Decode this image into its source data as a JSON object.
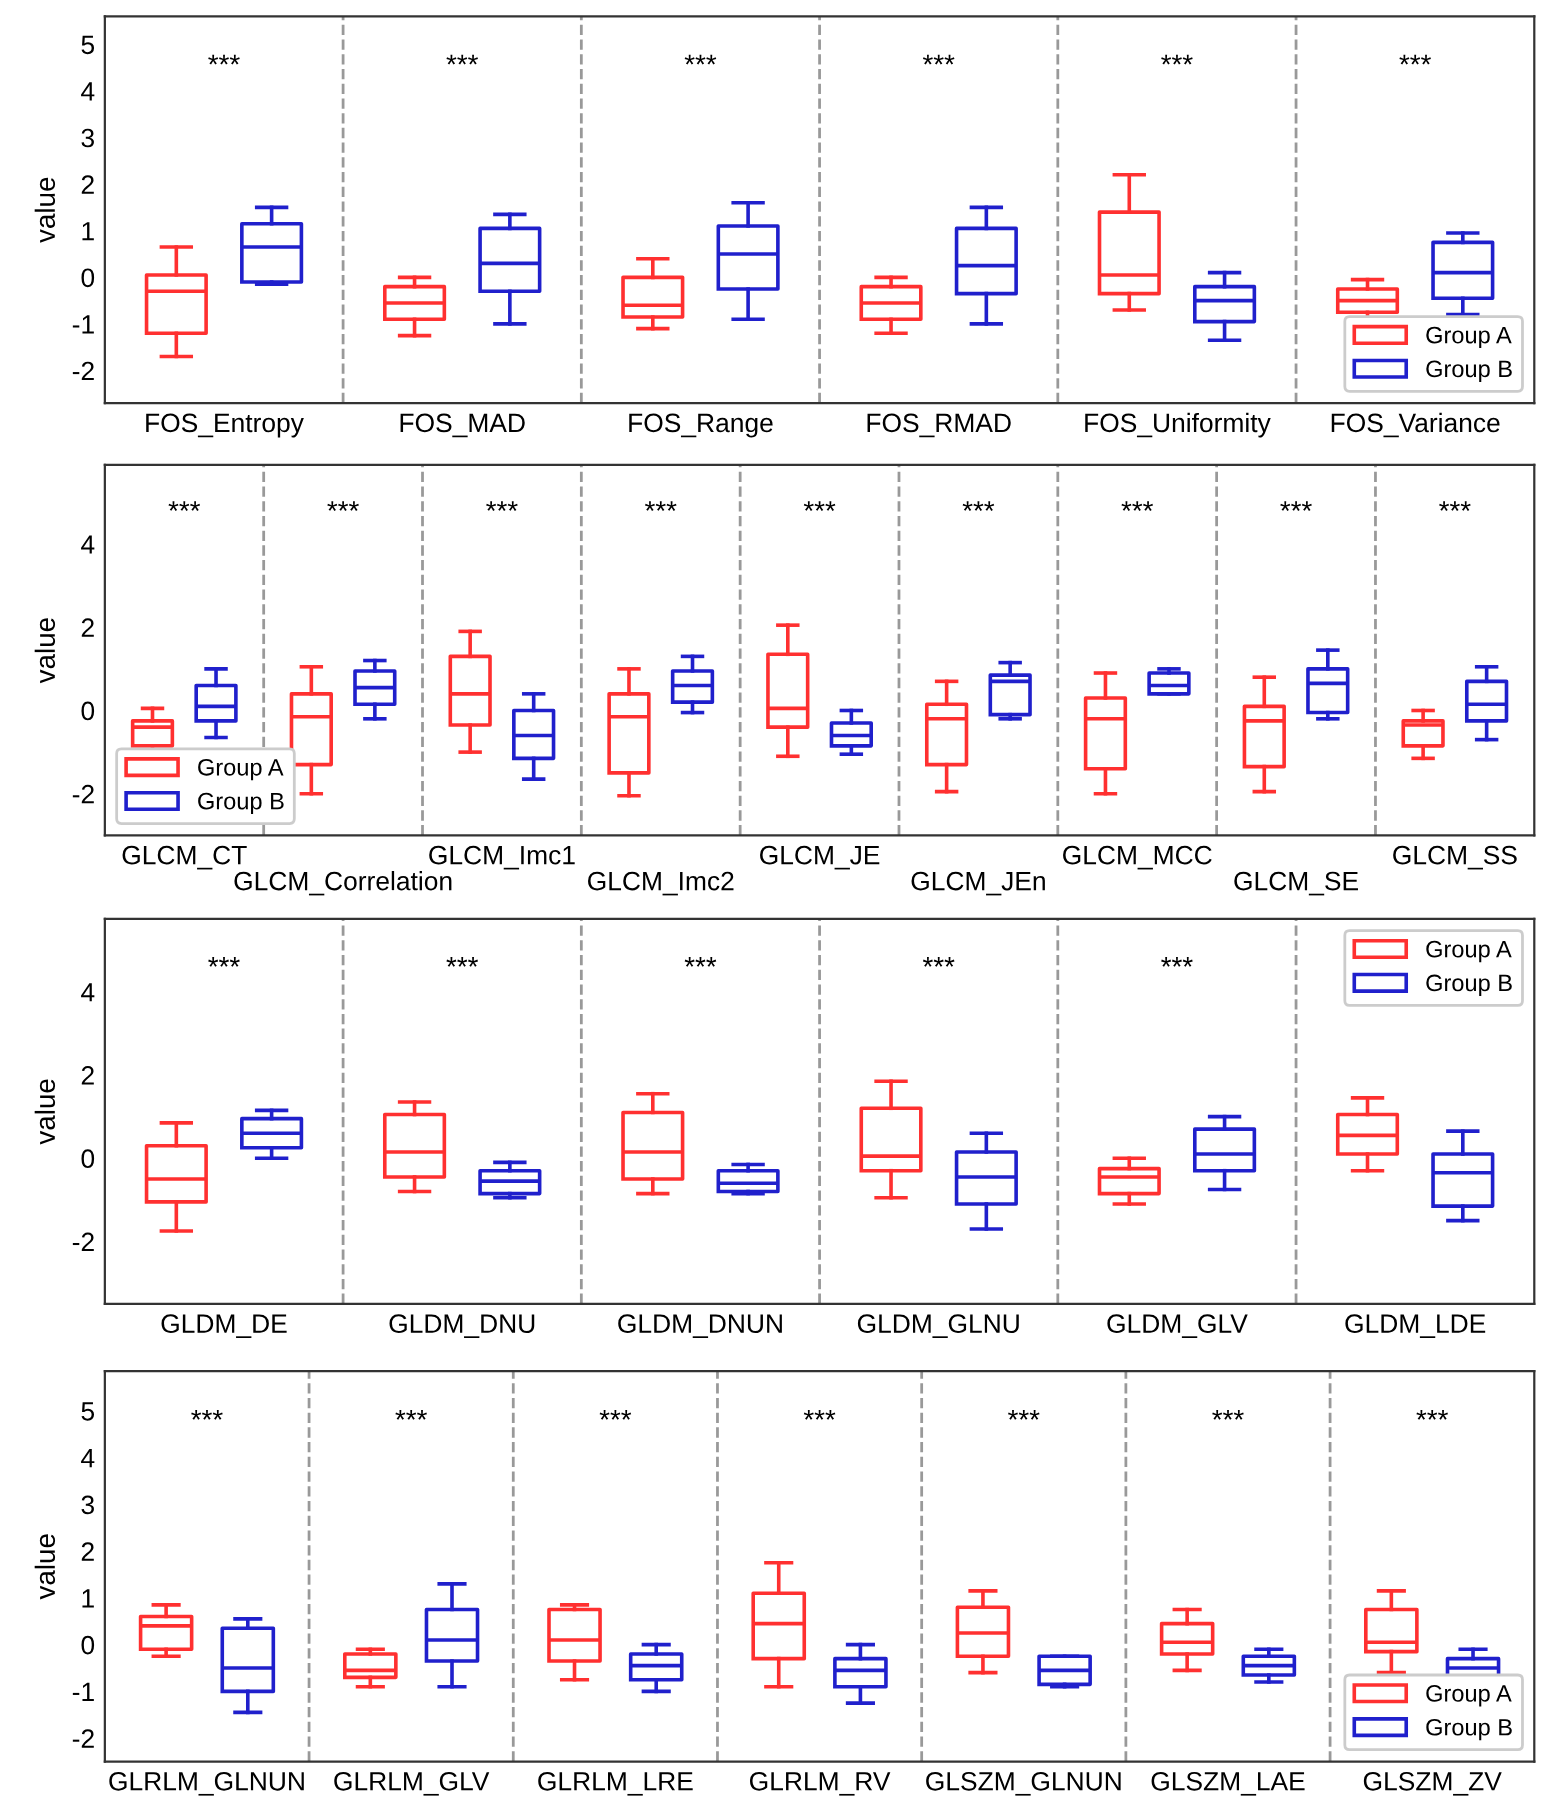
{
  "chart_data": [
    {
      "type": "box",
      "ylabel": "value",
      "categories": [
        "FOS_Entropy",
        "FOS_MAD",
        "FOS_Range",
        "FOS_RMAD",
        "FOS_Uniformity",
        "FOS_Variance"
      ],
      "ylim": [
        -2.7,
        5.6
      ],
      "yticks": [
        -2,
        -1,
        0,
        1,
        2,
        3,
        4,
        5
      ],
      "legend": "bottom right",
      "grid": false,
      "series": [
        {
          "name": "Group A",
          "color": "#ff3030",
          "boxes": [
            {
              "low": -1.7,
              "q1": -1.2,
              "median": -0.3,
              "q3": 0.05,
              "high": 0.65
            },
            {
              "low": -1.25,
              "q1": -0.9,
              "median": -0.55,
              "q3": -0.2,
              "high": 0.0
            },
            {
              "low": -1.1,
              "q1": -0.85,
              "median": -0.6,
              "q3": 0.0,
              "high": 0.4
            },
            {
              "low": -1.2,
              "q1": -0.9,
              "median": -0.55,
              "q3": -0.2,
              "high": 0.0
            },
            {
              "low": -0.7,
              "q1": -0.35,
              "median": 0.05,
              "q3": 1.4,
              "high": 2.2
            },
            {
              "low": -0.9,
              "q1": -0.75,
              "median": -0.5,
              "q3": -0.25,
              "high": -0.05
            }
          ]
        },
        {
          "name": "Group B",
          "color": "#2020cc",
          "boxes": [
            {
              "low": -0.15,
              "q1": -0.1,
              "median": 0.65,
              "q3": 1.15,
              "high": 1.5
            },
            {
              "low": -1.0,
              "q1": -0.3,
              "median": 0.3,
              "q3": 1.05,
              "high": 1.35
            },
            {
              "low": -0.9,
              "q1": -0.25,
              "median": 0.5,
              "q3": 1.1,
              "high": 1.6
            },
            {
              "low": -1.0,
              "q1": -0.35,
              "median": 0.25,
              "q3": 1.05,
              "high": 1.5
            },
            {
              "low": -1.35,
              "q1": -0.95,
              "median": -0.5,
              "q3": -0.2,
              "high": 0.1
            },
            {
              "low": -0.8,
              "q1": -0.45,
              "median": 0.1,
              "q3": 0.75,
              "high": 0.95
            }
          ]
        }
      ],
      "annotations": [
        "***",
        "***",
        "***",
        "***",
        "***",
        "***"
      ]
    },
    {
      "type": "box",
      "ylabel": "value",
      "categories": [
        "GLCM_CT",
        "GLCM_Correlation",
        "GLCM_Imc1",
        "GLCM_Imc2",
        "GLCM_JE",
        "GLCM_JEn",
        "GLCM_MCC",
        "GLCM_SE",
        "GLCM_SS"
      ],
      "ylim": [
        -3,
        5.9
      ],
      "yticks": [
        -2,
        0,
        2,
        4
      ],
      "legend": "bottom left",
      "grid": false,
      "series": [
        {
          "name": "Group A",
          "color": "#ff3030",
          "boxes": [
            {
              "low": -1.05,
              "q1": -0.85,
              "median": -0.4,
              "q3": -0.25,
              "high": 0.05
            },
            {
              "low": -2.0,
              "q1": -1.3,
              "median": -0.15,
              "q3": 0.4,
              "high": 1.05
            },
            {
              "low": -1.0,
              "q1": -0.35,
              "median": 0.4,
              "q3": 1.3,
              "high": 1.9
            },
            {
              "low": -2.05,
              "q1": -1.5,
              "median": -0.15,
              "q3": 0.4,
              "high": 1.0
            },
            {
              "low": -1.1,
              "q1": -0.4,
              "median": 0.05,
              "q3": 1.35,
              "high": 2.05
            },
            {
              "low": -1.95,
              "q1": -1.3,
              "median": -0.2,
              "q3": 0.15,
              "high": 0.7
            },
            {
              "low": -2.0,
              "q1": -1.4,
              "median": -0.2,
              "q3": 0.3,
              "high": 0.9
            },
            {
              "low": -1.95,
              "q1": -1.35,
              "median": -0.25,
              "q3": 0.1,
              "high": 0.8
            },
            {
              "low": -1.15,
              "q1": -0.85,
              "median": -0.35,
              "q3": -0.25,
              "high": 0.0
            }
          ]
        },
        {
          "name": "Group B",
          "color": "#2020cc",
          "boxes": [
            {
              "low": -0.65,
              "q1": -0.25,
              "median": 0.1,
              "q3": 0.6,
              "high": 1.0
            },
            {
              "low": -0.2,
              "q1": 0.15,
              "median": 0.55,
              "q3": 0.95,
              "high": 1.2
            },
            {
              "low": -1.65,
              "q1": -1.15,
              "median": -0.6,
              "q3": 0.0,
              "high": 0.4
            },
            {
              "low": -0.05,
              "q1": 0.2,
              "median": 0.6,
              "q3": 0.95,
              "high": 1.3
            },
            {
              "low": -1.05,
              "q1": -0.85,
              "median": -0.6,
              "q3": -0.3,
              "high": 0.0
            },
            {
              "low": -0.2,
              "q1": -0.1,
              "median": 0.7,
              "q3": 0.85,
              "high": 1.15
            },
            {
              "low": 0.4,
              "q1": 0.4,
              "median": 0.6,
              "q3": 0.9,
              "high": 1.0
            },
            {
              "low": -0.2,
              "q1": -0.05,
              "median": 0.65,
              "q3": 1.0,
              "high": 1.45
            },
            {
              "low": -0.7,
              "q1": -0.25,
              "median": 0.15,
              "q3": 0.7,
              "high": 1.05
            }
          ]
        }
      ],
      "annotations": [
        "***",
        "***",
        "***",
        "***",
        "***",
        "***",
        "***",
        "***",
        "***"
      ]
    },
    {
      "type": "box",
      "ylabel": "value",
      "categories": [
        "GLDM_DE",
        "GLDM_DNU",
        "GLDM_DNUN",
        "GLDM_GLNU",
        "GLDM_GLV",
        "GLDM_LDE"
      ],
      "ylim": [
        -3.5,
        5.75
      ],
      "yticks": [
        -2,
        0,
        2,
        4
      ],
      "legend": "top right",
      "grid": false,
      "series": [
        {
          "name": "Group A",
          "color": "#ff3030",
          "boxes": [
            {
              "low": -1.75,
              "q1": -1.05,
              "median": -0.5,
              "q3": 0.3,
              "high": 0.85
            },
            {
              "low": -0.8,
              "q1": -0.45,
              "median": 0.15,
              "q3": 1.05,
              "high": 1.35
            },
            {
              "low": -0.85,
              "q1": -0.5,
              "median": 0.15,
              "q3": 1.1,
              "high": 1.55
            },
            {
              "low": -0.95,
              "q1": -0.3,
              "median": 0.05,
              "q3": 1.2,
              "high": 1.85
            },
            {
              "low": -1.1,
              "q1": -0.85,
              "median": -0.45,
              "q3": -0.25,
              "high": 0.0
            },
            {
              "low": -0.3,
              "q1": 0.1,
              "median": 0.55,
              "q3": 1.05,
              "high": 1.45
            }
          ]
        },
        {
          "name": "Group B",
          "color": "#2020cc",
          "boxes": [
            {
              "low": 0.0,
              "q1": 0.25,
              "median": 0.6,
              "q3": 0.95,
              "high": 1.15
            },
            {
              "low": -0.95,
              "q1": -0.85,
              "median": -0.55,
              "q3": -0.3,
              "high": -0.1
            },
            {
              "low": -0.85,
              "q1": -0.8,
              "median": -0.6,
              "q3": -0.3,
              "high": -0.15
            },
            {
              "low": -1.7,
              "q1": -1.1,
              "median": -0.45,
              "q3": 0.15,
              "high": 0.6
            },
            {
              "low": -0.75,
              "q1": -0.3,
              "median": 0.1,
              "q3": 0.7,
              "high": 1.0
            },
            {
              "low": -1.5,
              "q1": -1.15,
              "median": -0.35,
              "q3": 0.1,
              "high": 0.65
            }
          ]
        }
      ],
      "annotations": [
        "***",
        "***",
        "***",
        "***",
        "***"
      ]
    },
    {
      "type": "box",
      "ylabel": "value",
      "categories": [
        "GLRLM_GLNUN",
        "GLRLM_GLV",
        "GLRLM_LRE",
        "GLRLM_RV",
        "GLSZM_GLNUN",
        "GLSZM_LAE",
        "GLSZM_ZV"
      ],
      "ylim": [
        -2.5,
        5.85
      ],
      "yticks": [
        -2,
        -1,
        0,
        1,
        2,
        3,
        4,
        5
      ],
      "legend": "bottom right",
      "grid": false,
      "series": [
        {
          "name": "Group A",
          "color": "#ff3030",
          "boxes": [
            {
              "low": -0.25,
              "q1": -0.1,
              "median": 0.4,
              "q3": 0.6,
              "high": 0.85
            },
            {
              "low": -0.9,
              "q1": -0.7,
              "median": -0.55,
              "q3": -0.2,
              "high": -0.1
            },
            {
              "low": -0.75,
              "q1": -0.35,
              "median": 0.1,
              "q3": 0.75,
              "high": 0.85
            },
            {
              "low": -0.9,
              "q1": -0.3,
              "median": 0.45,
              "q3": 1.1,
              "high": 1.75
            },
            {
              "low": -0.6,
              "q1": -0.25,
              "median": 0.25,
              "q3": 0.8,
              "high": 1.15
            },
            {
              "low": -0.55,
              "q1": -0.2,
              "median": 0.05,
              "q3": 0.45,
              "high": 0.75
            },
            {
              "low": -0.6,
              "q1": -0.15,
              "median": 0.05,
              "q3": 0.75,
              "high": 1.15
            }
          ]
        },
        {
          "name": "Group B",
          "color": "#2020cc",
          "boxes": [
            {
              "low": -1.45,
              "q1": -1.0,
              "median": -0.5,
              "q3": 0.35,
              "high": 0.55
            },
            {
              "low": -0.9,
              "q1": -0.35,
              "median": 0.1,
              "q3": 0.75,
              "high": 1.3
            },
            {
              "low": -1.0,
              "q1": -0.75,
              "median": -0.45,
              "q3": -0.2,
              "high": 0.0
            },
            {
              "low": -1.25,
              "q1": -0.9,
              "median": -0.55,
              "q3": -0.3,
              "high": 0.0
            },
            {
              "low": -0.9,
              "q1": -0.85,
              "median": -0.55,
              "q3": -0.25,
              "high": -0.25
            },
            {
              "low": -0.8,
              "q1": -0.65,
              "median": -0.45,
              "q3": -0.25,
              "high": -0.1
            },
            {
              "low": -0.95,
              "q1": -0.75,
              "median": -0.5,
              "q3": -0.3,
              "high": -0.1
            }
          ]
        }
      ],
      "annotations": [
        "***",
        "***",
        "***",
        "***",
        "***",
        "***",
        "***"
      ]
    }
  ]
}
